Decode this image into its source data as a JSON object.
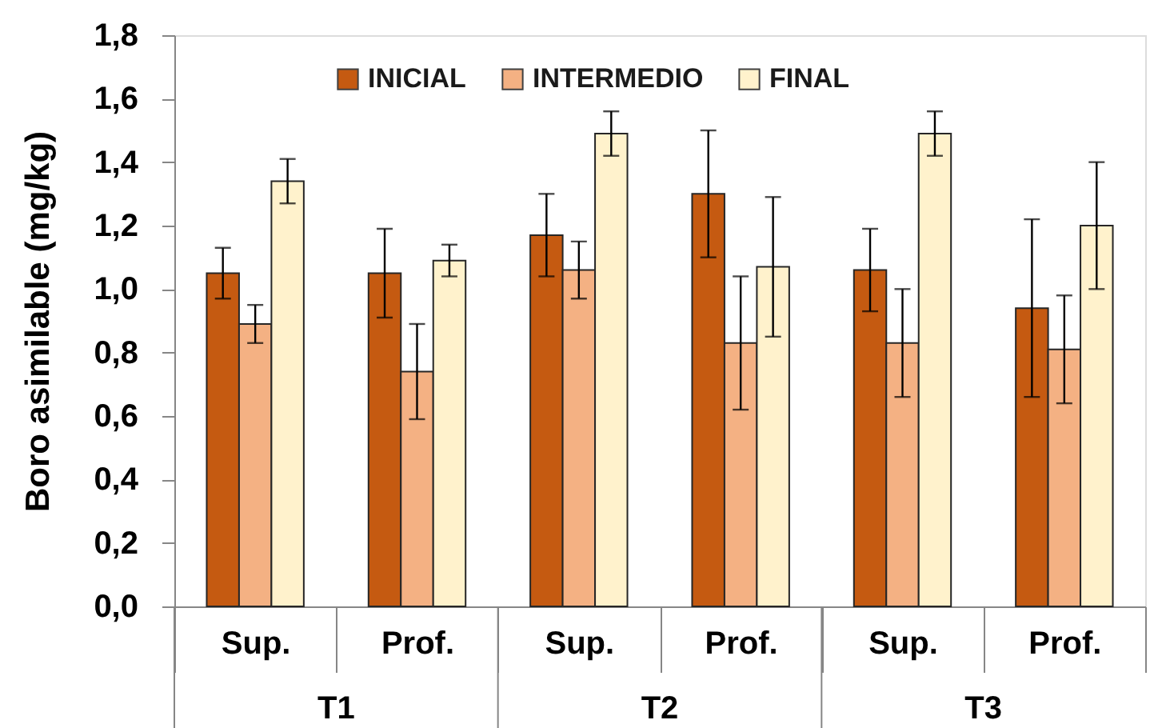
{
  "chart_data": {
    "type": "bar",
    "ylabel": "Boro asimilable (mg/kg)",
    "categories": [
      "Sup.",
      "Prof.",
      "Sup.",
      "Prof.",
      "Sup.",
      "Prof."
    ],
    "annotations": [
      "T1",
      "T2",
      "T3"
    ],
    "series": [
      {
        "name": "INICIAL",
        "color": "#c55a11",
        "values": [
          1.05,
          1.05,
          1.17,
          1.3,
          1.06,
          0.94
        ],
        "errors": [
          0.08,
          0.14,
          0.13,
          0.2,
          0.13,
          0.28
        ]
      },
      {
        "name": "INTERMEDIO",
        "color": "#f4b183",
        "values": [
          0.89,
          0.74,
          1.06,
          0.83,
          0.83,
          0.81
        ],
        "errors": [
          0.06,
          0.15,
          0.09,
          0.21,
          0.17,
          0.17
        ]
      },
      {
        "name": "FINAL",
        "color": "#fff2cc",
        "values": [
          1.34,
          1.09,
          1.49,
          1.07,
          1.49,
          1.2
        ],
        "errors": [
          0.07,
          0.05,
          0.07,
          0.22,
          0.07,
          0.2
        ]
      }
    ],
    "ylim": [
      0,
      1.8
    ],
    "yticks": [
      {
        "value": 0,
        "label": "0,0"
      },
      {
        "value": 0.2,
        "label": "0,2"
      },
      {
        "value": 0.4,
        "label": "0,4"
      },
      {
        "value": 0.6,
        "label": "0,6"
      },
      {
        "value": 0.8,
        "label": "0,8"
      },
      {
        "value": 1.0,
        "label": "1,0"
      },
      {
        "value": 1.2,
        "label": "1,2"
      },
      {
        "value": 1.4,
        "label": "1,4"
      },
      {
        "value": 1.6,
        "label": "1,6"
      },
      {
        "value": 1.8,
        "label": "1,8"
      }
    ],
    "legend": "top"
  }
}
